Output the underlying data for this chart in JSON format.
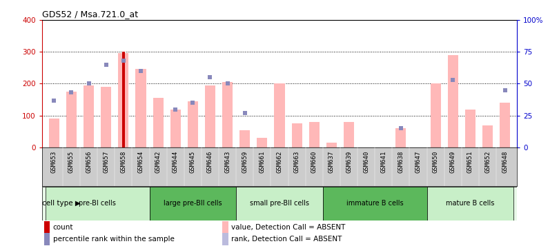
{
  "title": "GDS52 / Msa.721.0_at",
  "samples": [
    "GSM653",
    "GSM655",
    "GSM656",
    "GSM657",
    "GSM658",
    "GSM654",
    "GSM642",
    "GSM644",
    "GSM645",
    "GSM646",
    "GSM643",
    "GSM659",
    "GSM661",
    "GSM662",
    "GSM663",
    "GSM660",
    "GSM637",
    "GSM639",
    "GSM640",
    "GSM641",
    "GSM638",
    "GSM647",
    "GSM650",
    "GSM649",
    "GSM651",
    "GSM652",
    "GSM648"
  ],
  "pink_values": [
    90,
    175,
    195,
    190,
    295,
    245,
    155,
    120,
    145,
    195,
    205,
    55,
    30,
    200,
    75,
    80,
    15,
    80,
    0,
    0,
    60,
    0,
    200,
    290,
    120,
    70,
    140
  ],
  "blue_rank": [
    37,
    43,
    50,
    65,
    68,
    60,
    null,
    30,
    35,
    55,
    50,
    27,
    null,
    null,
    null,
    null,
    null,
    null,
    null,
    null,
    15,
    null,
    null,
    53,
    null,
    null,
    45
  ],
  "count_bar_idx": 4,
  "count_bar_val": 300,
  "ylim_left": [
    0,
    400
  ],
  "ylim_right": [
    0,
    100
  ],
  "yticks_left": [
    0,
    100,
    200,
    300,
    400
  ],
  "yticks_right": [
    0,
    25,
    50,
    75,
    100
  ],
  "ytick_labels_right": [
    "0",
    "25",
    "50",
    "75",
    "100%"
  ],
  "cell_types": [
    {
      "label": "pre-BI cells",
      "start": 0,
      "end": 6,
      "color": "#c8efc8"
    },
    {
      "label": "large pre-BII cells",
      "start": 6,
      "end": 11,
      "color": "#5cb85c"
    },
    {
      "label": "small pre-BII cells",
      "start": 11,
      "end": 16,
      "color": "#c8efc8"
    },
    {
      "label": "immature B cells",
      "start": 16,
      "end": 22,
      "color": "#5cb85c"
    },
    {
      "label": "mature B cells",
      "start": 22,
      "end": 27,
      "color": "#c8efc8"
    }
  ],
  "pink_color": "#ffb8b8",
  "red_color": "#cc0000",
  "blue_marker_color": "#8888bb",
  "bg_color": "#ffffff",
  "xticklabel_bg": "#cccccc",
  "grid_color": "#000000",
  "left_axis_color": "#cc0000",
  "right_axis_color": "#0000cc",
  "bar_width": 0.6
}
